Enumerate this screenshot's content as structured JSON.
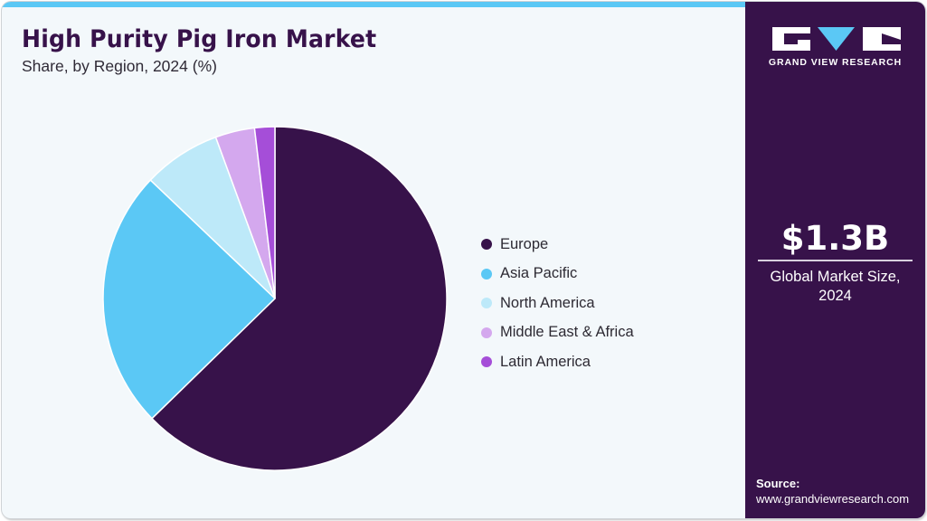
{
  "header": {
    "title": "High Purity Pig Iron Market",
    "subtitle": "Share, by Region, 2024 (%)"
  },
  "brand": {
    "logo_text": "GRAND VIEW RESEARCH",
    "colors": {
      "sidebar": "#37124a",
      "accent": "#5bc8f5",
      "background": "#f3f8fb"
    }
  },
  "highlight": {
    "value": "$1.3B",
    "label_line1": "Global Market Size,",
    "label_line2": "2024"
  },
  "source": {
    "label": "Source:",
    "url": "www.grandviewresearch.com"
  },
  "legend": [
    {
      "label": "Europe",
      "color": "#37124a"
    },
    {
      "label": "Asia Pacific",
      "color": "#5bc8f5"
    },
    {
      "label": "North America",
      "color": "#bde9f9"
    },
    {
      "label": "Middle East & Africa",
      "color": "#d4a8ee"
    },
    {
      "label": "Latin America",
      "color": "#a54ed8"
    }
  ],
  "chart_data": {
    "type": "pie",
    "title": "High Purity Pig Iron Market",
    "subtitle": "Share, by Region, 2024 (%)",
    "categories": [
      "Europe",
      "Asia Pacific",
      "North America",
      "Middle East & Africa",
      "Latin America"
    ],
    "values": [
      62.7,
      24.4,
      7.3,
      3.7,
      1.9
    ],
    "colors": [
      "#37124a",
      "#5bc8f5",
      "#bde9f9",
      "#d4a8ee",
      "#a54ed8"
    ],
    "start_angle_deg": 0,
    "direction": "clockwise",
    "legend_position": "right",
    "data_labels": false
  }
}
